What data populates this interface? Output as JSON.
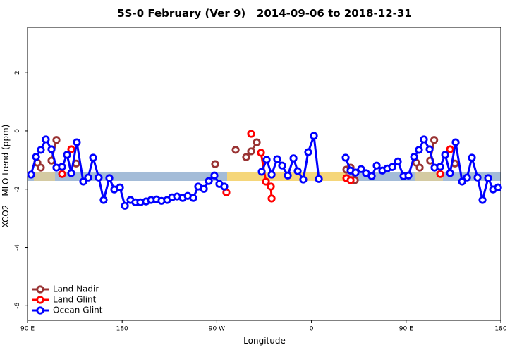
{
  "chart_data": {
    "type": "line",
    "title": "5S-0 February (Ver 9)   2014-09-06 to 2018-12-31",
    "x_label": "Longitude",
    "y_label": "XCO2 - MLO trend (ppm)",
    "xlim": [
      90,
      540
    ],
    "xticks": [
      {
        "value": 90,
        "label": "90 E"
      },
      {
        "value": 180,
        "label": "180"
      },
      {
        "value": 270,
        "label": "90 W"
      },
      {
        "value": 360,
        "label": "0"
      },
      {
        "value": 450,
        "label": "90 E"
      },
      {
        "value": 540,
        "label": "180"
      }
    ],
    "ylim": [
      -6.5,
      3.55
    ],
    "yticks": [
      -6,
      -4,
      -2,
      0,
      2
    ],
    "grid": false,
    "legend": "bottomleft",
    "series": [
      {
        "name": "Land Nadir",
        "color": "#993333",
        "x": [
          99.4,
          102.7,
          null,
          112.8,
          117.5,
          null,
          136.3,
          null,
          268.4,
          null,
          287.9,
          null,
          297.9,
          302.6,
          308.0,
          null,
          393.2,
          397.2,
          401.2,
          null,
          459.6,
          462.9,
          null,
          472.8,
          476.7,
          null,
          496.4
        ],
        "values": [
          -1.09,
          -1.26,
          null,
          -1.02,
          -0.31,
          null,
          -1.12,
          null,
          -1.14,
          null,
          -0.65,
          null,
          -0.9,
          -0.7,
          -0.39,
          null,
          -1.33,
          -1.26,
          -1.69,
          null,
          -1.09,
          -1.26,
          null,
          -1.02,
          -0.31,
          null,
          -1.12
        ]
      },
      {
        "name": "Land Glint",
        "color": "#ff0000",
        "x": [
          122.9,
          null,
          131.6,
          null,
          279.1,
          null,
          302.6,
          null,
          312.0,
          316.7,
          321.4,
          322.1,
          null,
          393.2,
          397.2,
          null,
          482.4,
          null,
          491.8
        ],
        "values": [
          -1.48,
          null,
          -0.63,
          null,
          -2.11,
          null,
          -0.1,
          null,
          -0.75,
          -1.74,
          -1.91,
          -2.32,
          null,
          -1.62,
          -1.69,
          null,
          -1.48,
          null,
          -0.63
        ]
      },
      {
        "name": "Ocean Glint",
        "color": "#0000ff",
        "x": [
          93.4,
          98.1,
          102.7,
          107.4,
          112.8,
          117.5,
          122.9,
          127.6,
          131.6,
          136.9,
          143.0,
          147.7,
          152.4,
          157.7,
          162.4,
          167.8,
          172.5,
          177.9,
          182.6,
          187.9,
          192.6,
          197.3,
          202.7,
          207.4,
          212.7,
          217.4,
          222.8,
          227.5,
          232.2,
          237.6,
          242.3,
          247.6,
          252.3,
          257.7,
          262.4,
          267.7,
          272.4,
          277.1,
          null,
          312.7,
          317.4,
          322.1,
          327.4,
          332.1,
          337.5,
          342.9,
          346.9,
          352.2,
          356.9,
          362.3,
          367.0,
          null,
          392.5,
          397.2,
          401.9,
          407.2,
          411.9,
          417.3,
          422.0,
          427.4,
          432.1,
          436.8,
          442.1,
          447.5,
          452.2,
          457.6,
          462.2,
          466.9,
          472.3,
          477.0,
          482.4,
          487.1,
          491.8,
          497.1,
          503.2,
          507.9,
          512.5,
          517.9,
          522.6,
          528.0,
          532.7,
          537.4
        ],
        "values": [
          -1.5,
          -0.89,
          -0.65,
          -0.29,
          -0.63,
          -1.26,
          -1.23,
          -0.82,
          -1.45,
          -0.39,
          -1.74,
          -1.6,
          -0.92,
          -1.6,
          -2.37,
          -1.62,
          -2.01,
          -1.94,
          -2.57,
          -2.37,
          -2.45,
          -2.45,
          -2.42,
          -2.37,
          -2.35,
          -2.4,
          -2.37,
          -2.28,
          -2.25,
          -2.3,
          -2.23,
          -2.3,
          -1.91,
          -1.99,
          -1.72,
          -1.53,
          -1.82,
          -1.91,
          null,
          -1.4,
          -0.99,
          -1.5,
          -0.97,
          -1.19,
          -1.53,
          -0.94,
          -1.38,
          -1.67,
          -0.73,
          -0.17,
          -1.65,
          null,
          -0.92,
          -1.36,
          -1.43,
          -1.31,
          -1.45,
          -1.55,
          -1.19,
          -1.36,
          -1.29,
          -1.24,
          -1.05,
          -1.55,
          -1.53,
          -0.89,
          -0.65,
          -0.29,
          -0.63,
          -1.26,
          -1.23,
          -0.82,
          -1.45,
          -0.39,
          -1.74,
          -1.6,
          -0.92,
          -1.6,
          -2.37,
          -1.62,
          -2.01,
          -1.94
        ]
      }
    ]
  }
}
